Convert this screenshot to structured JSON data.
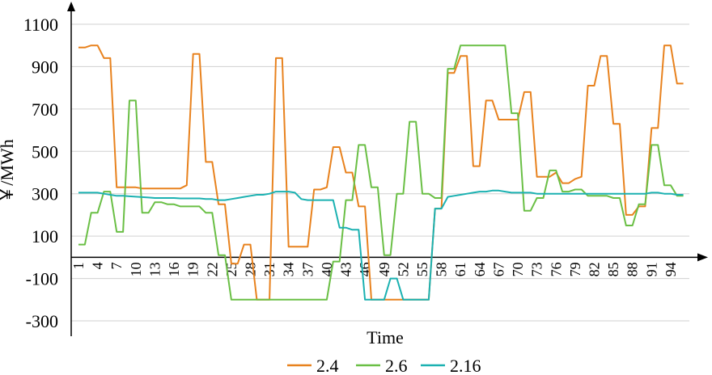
{
  "chart_data": {
    "type": "line",
    "title": "",
    "xlabel": "Time",
    "ylabel": "￥/MWh",
    "ylim": [
      -300,
      1100
    ],
    "yticks": [
      -300,
      -100,
      100,
      300,
      500,
      700,
      900,
      1100
    ],
    "xlim": [
      1,
      96
    ],
    "xticks": [
      1,
      4,
      7,
      10,
      13,
      16,
      19,
      22,
      25,
      28,
      31,
      34,
      37,
      40,
      43,
      46,
      49,
      52,
      55,
      58,
      61,
      64,
      67,
      70,
      73,
      76,
      79,
      82,
      85,
      88,
      91,
      94
    ],
    "grid": "horizontal",
    "legend_position": "bottom",
    "x": [
      1,
      2,
      3,
      4,
      5,
      6,
      7,
      8,
      9,
      10,
      11,
      12,
      13,
      14,
      15,
      16,
      17,
      18,
      19,
      20,
      21,
      22,
      23,
      24,
      25,
      26,
      27,
      28,
      29,
      30,
      31,
      32,
      33,
      34,
      35,
      36,
      37,
      38,
      39,
      40,
      41,
      42,
      43,
      44,
      45,
      46,
      47,
      48,
      49,
      50,
      51,
      52,
      53,
      54,
      55,
      56,
      57,
      58,
      59,
      60,
      61,
      62,
      63,
      64,
      65,
      66,
      67,
      68,
      69,
      70,
      71,
      72,
      73,
      74,
      75,
      76,
      77,
      78,
      79,
      80,
      81,
      82,
      83,
      84,
      85,
      86,
      87,
      88,
      89,
      90,
      91,
      92,
      93,
      94,
      95,
      96
    ],
    "series": [
      {
        "name": "2.4",
        "color": "#E8821E",
        "values": [
          990,
          990,
          1000,
          1000,
          940,
          940,
          330,
          330,
          330,
          330,
          325,
          325,
          325,
          325,
          325,
          325,
          325,
          340,
          960,
          960,
          450,
          450,
          250,
          250,
          -30,
          -30,
          60,
          60,
          -200,
          -200,
          -200,
          940,
          940,
          50,
          50,
          50,
          50,
          320,
          320,
          330,
          520,
          520,
          400,
          400,
          240,
          240,
          -200,
          -200,
          -200,
          -200,
          -200,
          -200,
          -200,
          -200,
          -200,
          -200,
          230,
          230,
          870,
          870,
          950,
          950,
          430,
          430,
          740,
          740,
          650,
          650,
          650,
          650,
          780,
          780,
          380,
          380,
          380,
          400,
          350,
          350,
          370,
          380,
          810,
          810,
          950,
          950,
          630,
          630,
          200,
          200,
          240,
          240,
          610,
          610,
          1000,
          1000,
          820,
          820
        ]
      },
      {
        "name": "2.6",
        "color": "#6ABF45",
        "values": [
          60,
          60,
          210,
          210,
          310,
          310,
          120,
          120,
          740,
          740,
          210,
          210,
          260,
          260,
          250,
          250,
          240,
          240,
          240,
          240,
          210,
          210,
          10,
          10,
          -200,
          -200,
          -200,
          -200,
          -200,
          -200,
          -200,
          -200,
          -200,
          -200,
          -200,
          -200,
          -200,
          -200,
          -200,
          -200,
          -20,
          -20,
          270,
          270,
          530,
          530,
          330,
          330,
          10,
          10,
          300,
          300,
          640,
          640,
          300,
          300,
          280,
          280,
          890,
          890,
          1000,
          1000,
          1000,
          1000,
          1000,
          1000,
          1000,
          1000,
          680,
          680,
          220,
          220,
          280,
          280,
          410,
          410,
          310,
          310,
          320,
          320,
          290,
          290,
          290,
          290,
          280,
          280,
          150,
          150,
          250,
          250,
          530,
          530,
          340,
          340,
          290,
          290
        ]
      },
      {
        "name": "2.16",
        "color": "#1BB1B1",
        "values": [
          305,
          305,
          305,
          305,
          300,
          295,
          290,
          290,
          288,
          286,
          284,
          282,
          280,
          280,
          280,
          280,
          278,
          278,
          278,
          278,
          275,
          275,
          270,
          270,
          275,
          280,
          285,
          290,
          295,
          295,
          300,
          310,
          310,
          310,
          305,
          275,
          270,
          270,
          270,
          270,
          270,
          140,
          140,
          130,
          130,
          -200,
          -200,
          -200,
          -200,
          -100,
          -100,
          -200,
          -200,
          -200,
          -200,
          -200,
          230,
          230,
          285,
          290,
          295,
          300,
          305,
          310,
          310,
          315,
          315,
          310,
          305,
          305,
          305,
          305,
          300,
          300,
          300,
          300,
          300,
          300,
          300,
          300,
          300,
          300,
          300,
          300,
          300,
          300,
          300,
          300,
          300,
          300,
          305,
          305,
          300,
          300,
          295,
          295
        ]
      }
    ]
  }
}
